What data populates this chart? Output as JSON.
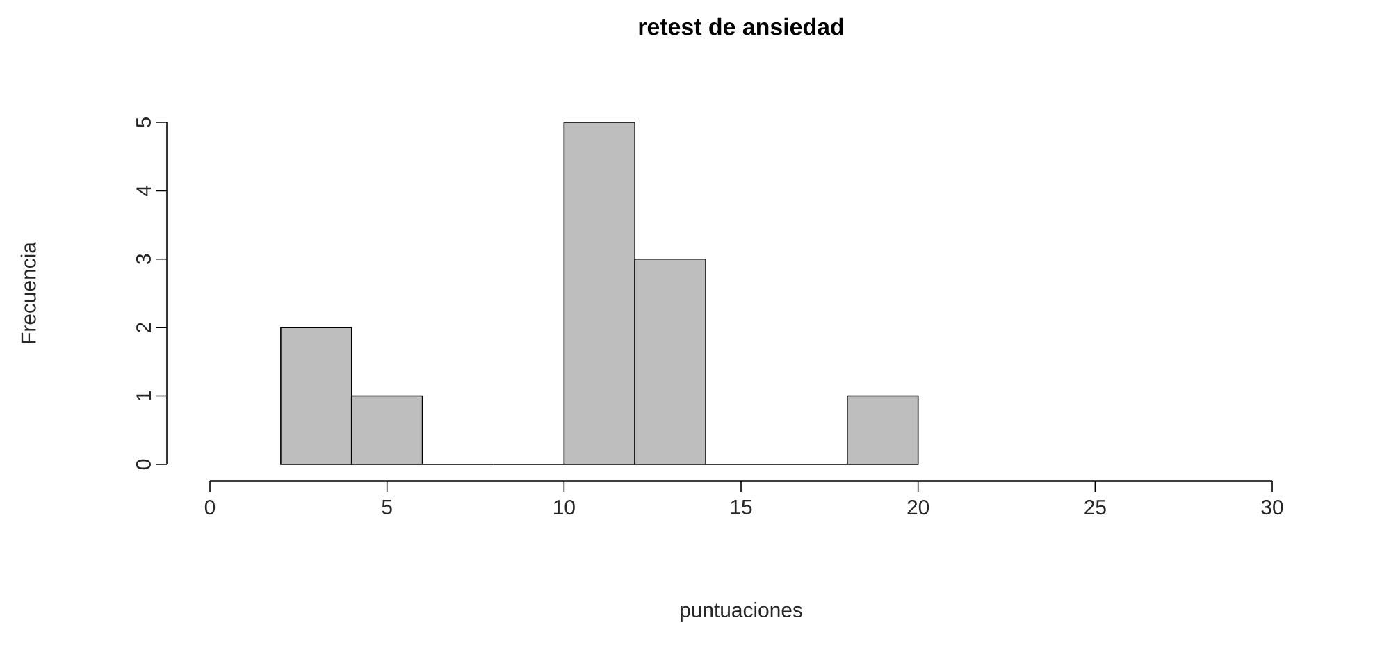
{
  "chart_data": {
    "type": "histogram",
    "title": "retest de ansiedad",
    "xlabel": "puntuaciones",
    "ylabel": "Frecuencia",
    "bins": [
      2,
      4,
      6,
      8,
      10,
      12,
      14,
      16,
      18,
      20
    ],
    "values": [
      2,
      1,
      0,
      0,
      5,
      3,
      0,
      0,
      1
    ],
    "color": "#bebebe",
    "xlim": [
      0,
      30
    ],
    "ylim": [
      0,
      5
    ],
    "xticks": [
      0,
      5,
      10,
      15,
      20,
      25,
      30
    ],
    "yticks": [
      0,
      1,
      2,
      3,
      4,
      5
    ]
  }
}
